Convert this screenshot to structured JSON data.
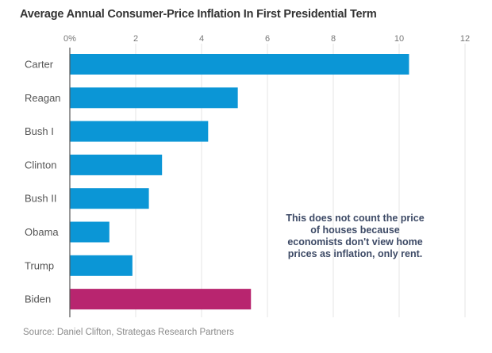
{
  "chart_data": {
    "type": "bar",
    "orientation": "horizontal",
    "title": "Average Annual Consumer-Price Inflation In First Presidential Term",
    "xlabel": "",
    "ylabel": "",
    "xlim": [
      0,
      12
    ],
    "x_ticks": [
      0,
      2,
      4,
      6,
      8,
      10,
      12
    ],
    "x_tick_labels": [
      "0%",
      "2",
      "4",
      "6",
      "8",
      "10",
      "12"
    ],
    "grid": true,
    "categories": [
      "Carter",
      "Reagan",
      "Bush I",
      "Clinton",
      "Bush II",
      "Obama",
      "Trump",
      "Biden"
    ],
    "values": [
      10.3,
      5.1,
      4.2,
      2.8,
      2.4,
      1.2,
      1.9,
      5.5
    ],
    "bar_colors": [
      "#0b96d6",
      "#0b96d6",
      "#0b96d6",
      "#0b96d6",
      "#0b96d6",
      "#0b96d6",
      "#0b96d6",
      "#b8256f"
    ],
    "annotation": "This does not count the price of houses because economists don't view home prices as inflation, only rent.",
    "source": "Source: Daniel Clifton, Strategas Research Partners"
  }
}
